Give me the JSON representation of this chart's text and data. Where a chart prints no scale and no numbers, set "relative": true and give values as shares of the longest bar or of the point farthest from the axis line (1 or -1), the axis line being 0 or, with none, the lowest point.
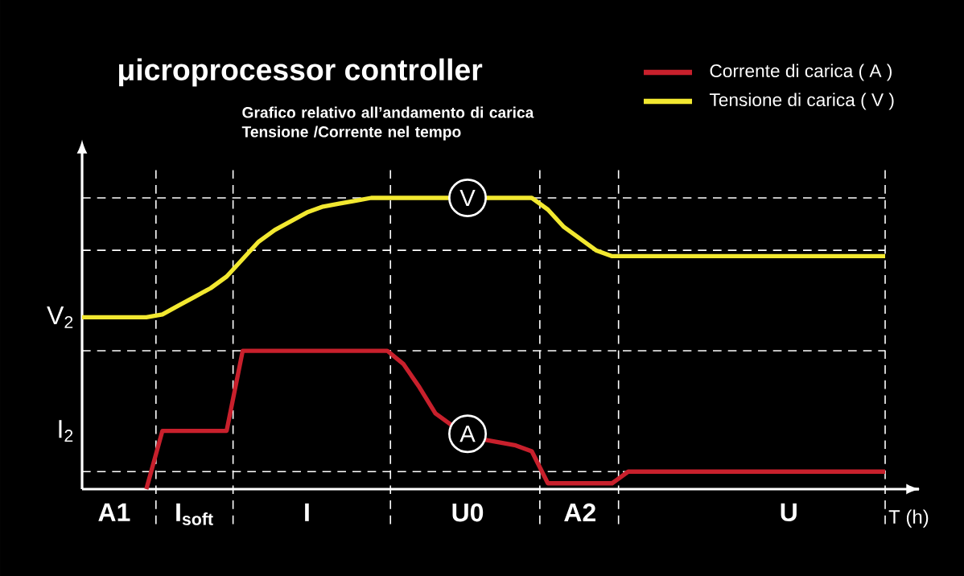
{
  "chart_data": {
    "type": "line",
    "title": "μicroprocessor controller",
    "subtitle": "Grafico relativo all’andamento di carica Tensione /Corrente nel tempo",
    "xlabel": "T (h)",
    "relative": true,
    "legend": "top right",
    "categories": [
      null,
      null,
      "A1",
      null,
      null,
      null,
      null,
      "I$_{soft}$",
      null,
      null,
      null,
      null,
      null,
      null,
      "I",
      null,
      null,
      null,
      null,
      null,
      null,
      null,
      null,
      null,
      "U0",
      null,
      null,
      null,
      null,
      null,
      null,
      "A2",
      null,
      null,
      null,
      null,
      null,
      null,
      null,
      null,
      null,
      null,
      null,
      null,
      "U",
      null,
      null,
      null,
      null,
      null,
      null
    ],
    "series": [
      {
        "name": "Corrente di carica ( A )",
        "color": "#c8202c",
        "values": [
          null,
          null,
          null,
          null,
          0,
          0.2,
          0.2,
          0.2,
          0.2,
          0.2,
          0.475,
          0.475,
          0.475,
          0.475,
          0.475,
          0.475,
          0.475,
          0.475,
          0.475,
          0.475,
          0.43,
          0.35,
          0.26,
          0.22,
          0.19,
          0.17,
          0.16,
          0.15,
          0.13,
          0.02,
          0.02,
          0.02,
          0.02,
          0.02,
          0.06,
          0.06,
          0.06,
          0.06,
          0.06,
          0.06,
          0.06,
          0.06,
          0.06,
          0.06,
          0.06,
          0.06,
          0.06,
          0.06,
          0.06,
          0.06,
          0.06
        ]
      },
      {
        "name": "Tensione di carica ( V )",
        "color": "#f2e830",
        "values": [
          0.59,
          0.59,
          0.59,
          0.59,
          0.59,
          0.6,
          0.63,
          0.66,
          0.69,
          0.73,
          0.79,
          0.85,
          0.89,
          0.92,
          0.95,
          0.97,
          0.98,
          0.99,
          1.0,
          1.0,
          1.0,
          1.0,
          1.0,
          1.0,
          1.0,
          1.0,
          1.0,
          1.0,
          1.0,
          0.96,
          0.9,
          0.86,
          0.82,
          0.8,
          0.8,
          0.8,
          0.8,
          0.8,
          0.8,
          0.8,
          0.8,
          0.8,
          0.8,
          0.8,
          0.8,
          0.8,
          0.8,
          0.8,
          0.8,
          0.8,
          0.8
        ]
      }
    ],
    "annotations": [
      "V$_{2}$",
      "I$_{2}$",
      {
        "text": "V",
        "x": "U0",
        "y": 1.0
      },
      {
        "text": "A",
        "x": "U0",
        "y": 0.19
      }
    ]
  }
}
